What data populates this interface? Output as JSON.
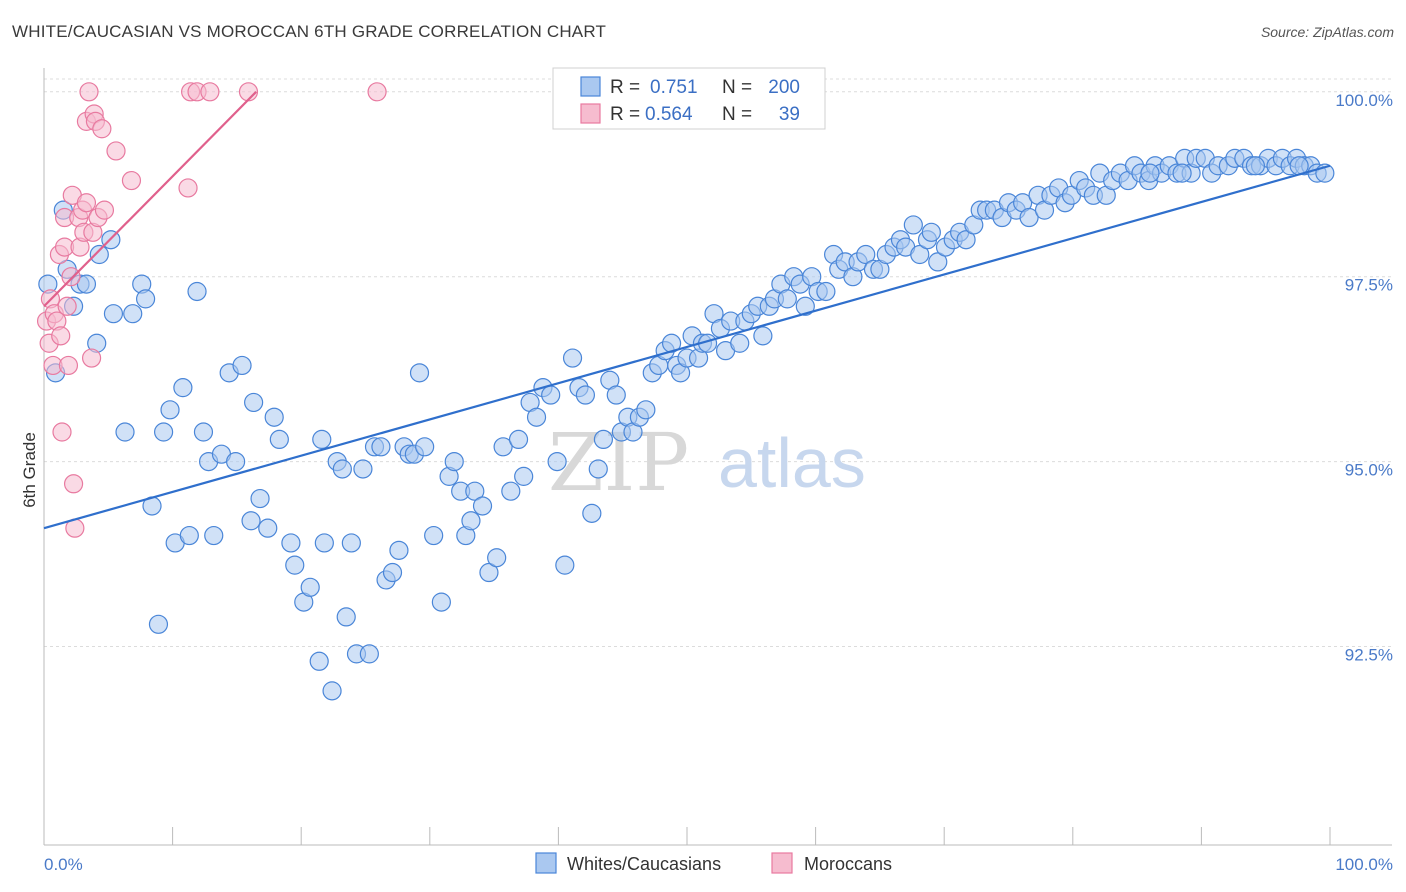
{
  "title": "WHITE/CAUCASIAN VS MOROCCAN 6TH GRADE CORRELATION CHART",
  "source": "Source: ZipAtlas.com",
  "watermark": {
    "zip": "ZIP",
    "atlas": "atlas"
  },
  "colors": {
    "blue": "#4a86d8",
    "blue_fill": "#aac8f0",
    "pink": "#e87aa0",
    "pink_fill": "#f6bccf",
    "blue_line": "#2f6fcc",
    "pink_line": "#e0608c",
    "tick_text": "#4a7ac8"
  },
  "legend": {
    "rows": [
      {
        "r_label": "R =",
        "r_value": "0.751",
        "n_label": "N =",
        "n_value": "200"
      },
      {
        "r_label": "R =",
        "r_value": "0.564",
        "n_label": "N =",
        "n_value": "39"
      }
    ]
  },
  "bottom_legend": [
    {
      "label": "Whites/Caucasians"
    },
    {
      "label": "Moroccans"
    }
  ],
  "chart_data": {
    "type": "scatter",
    "title": "WHITE/CAUCASIAN VS MOROCCAN 6TH GRADE CORRELATION CHART",
    "xlabel": "",
    "ylabel": "6th Grade",
    "xlim": [
      0,
      100
    ],
    "ylim": [
      90.1,
      100.2
    ],
    "x_tick_labels": [
      "0.0%",
      "100.0%"
    ],
    "y_ticks": [
      {
        "value": 92.5,
        "label": "92.5%"
      },
      {
        "value": 95.0,
        "label": "95.0%"
      },
      {
        "value": 97.5,
        "label": "97.5%"
      },
      {
        "value": 100.0,
        "label": "100.0%"
      }
    ],
    "grid": true,
    "legend_placement": "top-center",
    "series": [
      {
        "name": "Whites/Caucasians",
        "color": "#4a86d8",
        "trend": {
          "x": [
            0,
            100
          ],
          "y": [
            94.1,
            99.0
          ]
        },
        "points": [
          [
            0.3,
            97.4
          ],
          [
            0.9,
            96.2
          ],
          [
            1.5,
            98.4
          ],
          [
            1.8,
            97.6
          ],
          [
            2.3,
            97.1
          ],
          [
            2.8,
            97.4
          ],
          [
            3.3,
            97.4
          ],
          [
            4.1,
            96.6
          ],
          [
            4.3,
            97.8
          ],
          [
            5.2,
            98.0
          ],
          [
            5.4,
            97.0
          ],
          [
            6.3,
            95.4
          ],
          [
            6.9,
            97.0
          ],
          [
            7.6,
            97.4
          ],
          [
            7.9,
            97.2
          ],
          [
            8.4,
            94.4
          ],
          [
            8.9,
            92.8
          ],
          [
            9.3,
            95.4
          ],
          [
            9.8,
            95.7
          ],
          [
            10.2,
            93.9
          ],
          [
            10.8,
            96.0
          ],
          [
            11.3,
            94.0
          ],
          [
            11.9,
            97.3
          ],
          [
            12.4,
            95.4
          ],
          [
            12.8,
            95.0
          ],
          [
            13.2,
            94.0
          ],
          [
            13.8,
            95.1
          ],
          [
            14.4,
            96.2
          ],
          [
            14.9,
            95.0
          ],
          [
            15.4,
            96.3
          ],
          [
            16.1,
            94.2
          ],
          [
            16.3,
            95.8
          ],
          [
            16.8,
            94.5
          ],
          [
            17.4,
            94.1
          ],
          [
            17.9,
            95.6
          ],
          [
            18.3,
            95.3
          ],
          [
            19.2,
            93.9
          ],
          [
            19.5,
            93.6
          ],
          [
            20.2,
            93.1
          ],
          [
            20.7,
            93.3
          ],
          [
            21.4,
            92.3
          ],
          [
            21.8,
            93.9
          ],
          [
            21.6,
            95.3
          ],
          [
            22.4,
            91.9
          ],
          [
            22.8,
            95.0
          ],
          [
            23.2,
            94.9
          ],
          [
            23.5,
            92.9
          ],
          [
            23.9,
            93.9
          ],
          [
            24.3,
            92.4
          ],
          [
            24.8,
            94.9
          ],
          [
            25.3,
            92.4
          ],
          [
            25.7,
            95.2
          ],
          [
            26.2,
            95.2
          ],
          [
            26.6,
            93.4
          ],
          [
            27.1,
            93.5
          ],
          [
            27.6,
            93.8
          ],
          [
            28.0,
            95.2
          ],
          [
            28.4,
            95.1
          ],
          [
            28.8,
            95.1
          ],
          [
            29.2,
            96.2
          ],
          [
            29.6,
            95.2
          ],
          [
            30.3,
            94.0
          ],
          [
            30.9,
            93.1
          ],
          [
            31.5,
            94.8
          ],
          [
            31.9,
            95.0
          ],
          [
            32.4,
            94.6
          ],
          [
            32.8,
            94.0
          ],
          [
            33.2,
            94.2
          ],
          [
            33.5,
            94.6
          ],
          [
            34.1,
            94.4
          ],
          [
            34.6,
            93.5
          ],
          [
            35.2,
            93.7
          ],
          [
            35.7,
            95.2
          ],
          [
            36.3,
            94.6
          ],
          [
            36.9,
            95.3
          ],
          [
            37.3,
            94.8
          ],
          [
            37.8,
            95.8
          ],
          [
            38.3,
            95.6
          ],
          [
            38.8,
            96.0
          ],
          [
            39.4,
            95.9
          ],
          [
            39.9,
            95.0
          ],
          [
            40.5,
            93.6
          ],
          [
            41.1,
            96.4
          ],
          [
            41.6,
            96.0
          ],
          [
            42.1,
            95.9
          ],
          [
            42.6,
            94.3
          ],
          [
            43.1,
            94.9
          ],
          [
            43.5,
            95.3
          ],
          [
            44.0,
            96.1
          ],
          [
            44.5,
            95.9
          ],
          [
            44.9,
            95.4
          ],
          [
            45.4,
            95.6
          ],
          [
            45.8,
            95.4
          ],
          [
            46.3,
            95.6
          ],
          [
            46.8,
            95.7
          ],
          [
            47.3,
            96.2
          ],
          [
            47.8,
            96.3
          ],
          [
            48.3,
            96.5
          ],
          [
            48.8,
            96.6
          ],
          [
            49.2,
            96.3
          ],
          [
            49.5,
            96.2
          ],
          [
            50.0,
            96.4
          ],
          [
            50.4,
            96.7
          ],
          [
            50.9,
            96.4
          ],
          [
            51.2,
            96.6
          ],
          [
            51.6,
            96.6
          ],
          [
            52.1,
            97.0
          ],
          [
            52.6,
            96.8
          ],
          [
            53.0,
            96.5
          ],
          [
            53.4,
            96.9
          ],
          [
            54.1,
            96.6
          ],
          [
            54.5,
            96.9
          ],
          [
            55.0,
            97.0
          ],
          [
            55.5,
            97.1
          ],
          [
            55.9,
            96.7
          ],
          [
            56.4,
            97.1
          ],
          [
            56.8,
            97.2
          ],
          [
            57.3,
            97.4
          ],
          [
            57.8,
            97.2
          ],
          [
            58.3,
            97.5
          ],
          [
            58.8,
            97.4
          ],
          [
            59.2,
            97.1
          ],
          [
            59.7,
            97.5
          ],
          [
            60.2,
            97.3
          ],
          [
            60.8,
            97.3
          ],
          [
            61.4,
            97.8
          ],
          [
            61.8,
            97.6
          ],
          [
            62.3,
            97.7
          ],
          [
            62.9,
            97.5
          ],
          [
            63.3,
            97.7
          ],
          [
            63.9,
            97.8
          ],
          [
            64.5,
            97.6
          ],
          [
            65.0,
            97.6
          ],
          [
            65.5,
            97.8
          ],
          [
            66.1,
            97.9
          ],
          [
            66.6,
            98.0
          ],
          [
            67.0,
            97.9
          ],
          [
            67.6,
            98.2
          ],
          [
            68.1,
            97.8
          ],
          [
            68.7,
            98.0
          ],
          [
            69.0,
            98.1
          ],
          [
            69.5,
            97.7
          ],
          [
            70.1,
            97.9
          ],
          [
            70.7,
            98.0
          ],
          [
            71.2,
            98.1
          ],
          [
            71.7,
            98.0
          ],
          [
            72.3,
            98.2
          ],
          [
            72.8,
            98.4
          ],
          [
            73.3,
            98.4
          ],
          [
            73.9,
            98.4
          ],
          [
            74.5,
            98.3
          ],
          [
            75.0,
            98.5
          ],
          [
            75.6,
            98.4
          ],
          [
            76.1,
            98.5
          ],
          [
            76.6,
            98.3
          ],
          [
            77.3,
            98.6
          ],
          [
            77.8,
            98.4
          ],
          [
            78.3,
            98.6
          ],
          [
            78.9,
            98.7
          ],
          [
            79.4,
            98.5
          ],
          [
            79.9,
            98.6
          ],
          [
            80.5,
            98.8
          ],
          [
            81.0,
            98.7
          ],
          [
            81.6,
            98.6
          ],
          [
            82.1,
            98.9
          ],
          [
            82.6,
            98.6
          ],
          [
            83.1,
            98.8
          ],
          [
            83.7,
            98.9
          ],
          [
            84.3,
            98.8
          ],
          [
            84.8,
            99.0
          ],
          [
            85.3,
            98.9
          ],
          [
            85.9,
            98.8
          ],
          [
            86.4,
            99.0
          ],
          [
            86.9,
            98.9
          ],
          [
            87.5,
            99.0
          ],
          [
            88.1,
            98.9
          ],
          [
            88.7,
            99.1
          ],
          [
            89.2,
            98.9
          ],
          [
            89.6,
            99.1
          ],
          [
            90.3,
            99.1
          ],
          [
            90.8,
            98.9
          ],
          [
            91.3,
            99.0
          ],
          [
            92.1,
            99.0
          ],
          [
            92.6,
            99.1
          ],
          [
            93.3,
            99.1
          ],
          [
            93.9,
            99.0
          ],
          [
            94.6,
            99.0
          ],
          [
            95.2,
            99.1
          ],
          [
            95.8,
            99.0
          ],
          [
            96.3,
            99.1
          ],
          [
            96.9,
            99.0
          ],
          [
            97.4,
            99.1
          ],
          [
            98.0,
            99.0
          ],
          [
            98.5,
            99.0
          ],
          [
            99.0,
            98.9
          ],
          [
            99.6,
            98.9
          ],
          [
            97.6,
            99.0
          ],
          [
            94.2,
            99.0
          ],
          [
            88.5,
            98.9
          ],
          [
            86.0,
            98.9
          ]
        ]
      },
      {
        "name": "Moroccans",
        "color": "#e87aa0",
        "trend": {
          "x": [
            0,
            16.5
          ],
          "y": [
            97.1,
            100.0
          ]
        },
        "points": [
          [
            0.2,
            96.9
          ],
          [
            0.4,
            96.6
          ],
          [
            0.5,
            97.2
          ],
          [
            0.7,
            96.3
          ],
          [
            0.8,
            97.0
          ],
          [
            1.0,
            96.9
          ],
          [
            1.2,
            97.8
          ],
          [
            1.3,
            96.7
          ],
          [
            1.4,
            95.4
          ],
          [
            1.6,
            98.3
          ],
          [
            1.6,
            97.9
          ],
          [
            1.8,
            97.1
          ],
          [
            1.9,
            96.3
          ],
          [
            2.1,
            97.5
          ],
          [
            2.2,
            98.6
          ],
          [
            2.3,
            94.7
          ],
          [
            2.4,
            94.1
          ],
          [
            2.7,
            98.3
          ],
          [
            2.8,
            97.9
          ],
          [
            3.0,
            98.4
          ],
          [
            3.1,
            98.1
          ],
          [
            3.3,
            98.5
          ],
          [
            3.3,
            99.6
          ],
          [
            3.5,
            100.0
          ],
          [
            3.7,
            96.4
          ],
          [
            3.8,
            98.1
          ],
          [
            3.9,
            99.7
          ],
          [
            4.0,
            99.6
          ],
          [
            4.2,
            98.3
          ],
          [
            4.5,
            99.5
          ],
          [
            4.7,
            98.4
          ],
          [
            5.6,
            99.2
          ],
          [
            6.8,
            98.8
          ],
          [
            11.2,
            98.7
          ],
          [
            11.4,
            100.0
          ],
          [
            11.9,
            100.0
          ],
          [
            12.9,
            100.0
          ],
          [
            15.9,
            100.0
          ],
          [
            25.9,
            100.0
          ]
        ]
      }
    ]
  }
}
